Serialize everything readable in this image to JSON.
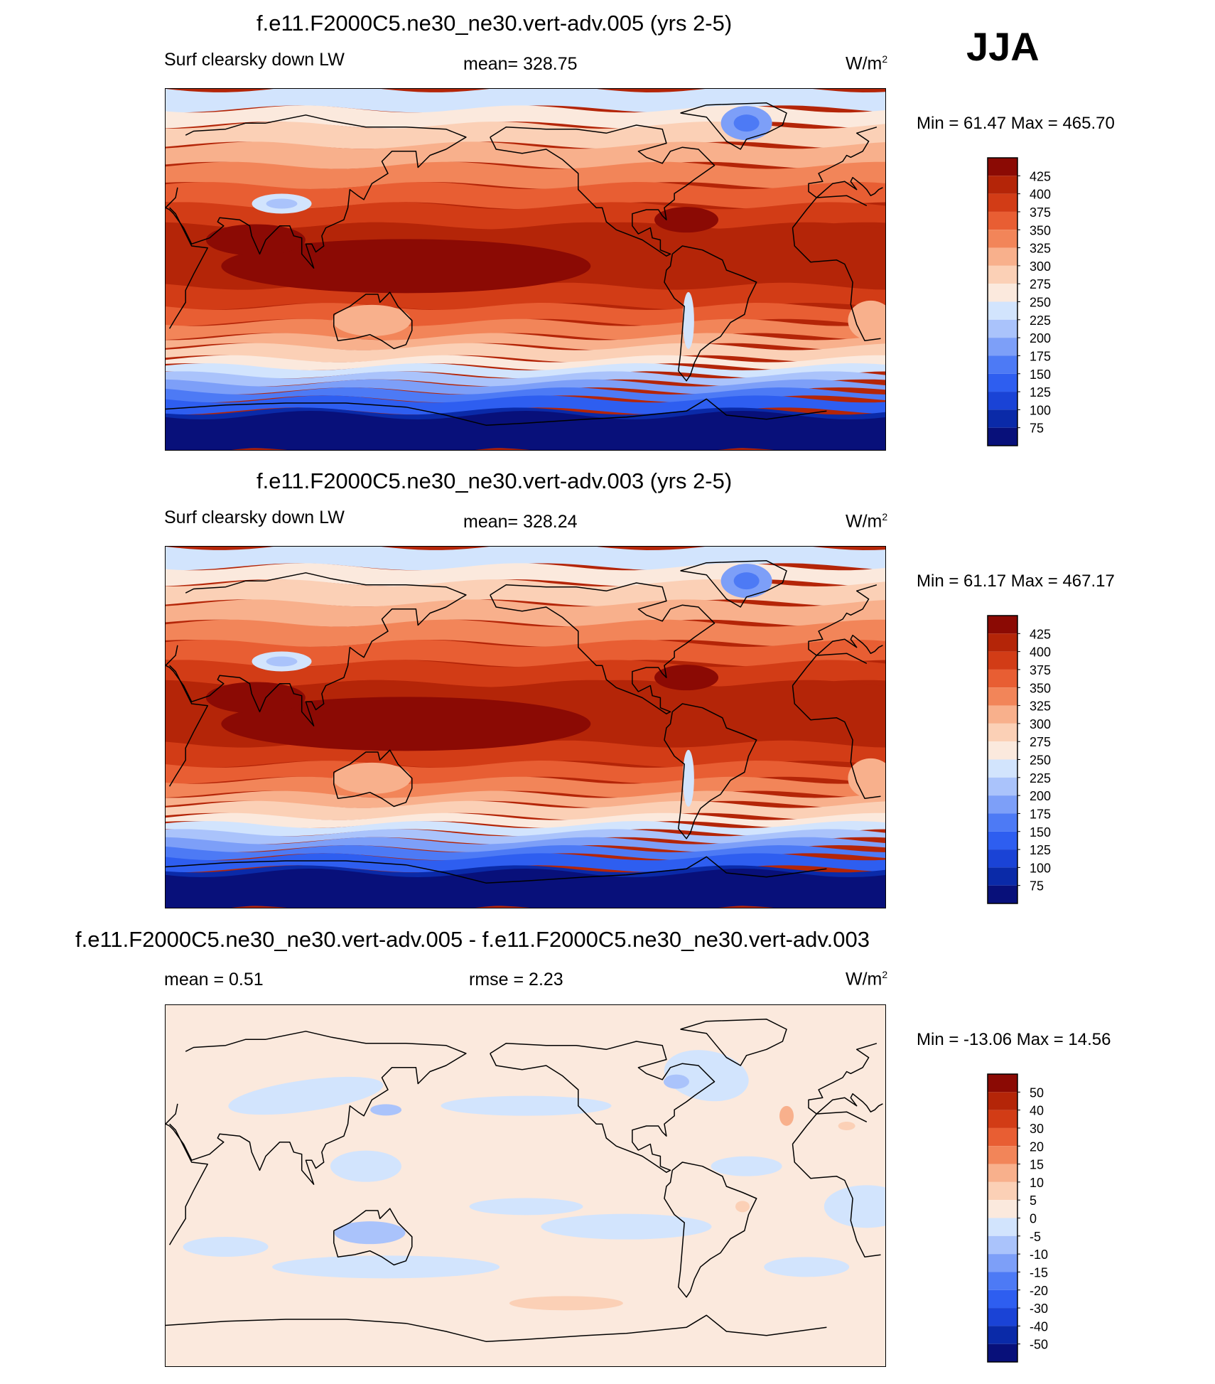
{
  "season": "JJA",
  "units": {
    "base": "W/m",
    "exp": "2"
  },
  "palette_abs": [
    "#08107a",
    "#0a2aa8",
    "#1a43d6",
    "#2e5ef0",
    "#4d7af5",
    "#7d9ff8",
    "#aac3fb",
    "#d2e4fd",
    "#fbe9dd",
    "#fbd0b6",
    "#f8b08c",
    "#f28559",
    "#e85e33",
    "#d23c16",
    "#b42508",
    "#8b0a04"
  ],
  "palette_diff": [
    "#08107a",
    "#0a2aa8",
    "#1a43d6",
    "#2e5ef0",
    "#4d7af5",
    "#7d9ff8",
    "#aac3fb",
    "#d2e4fd",
    "#fbe9dd",
    "#fbd0b6",
    "#f8b08c",
    "#f28559",
    "#e85e33",
    "#d23c16",
    "#b42508",
    "#8b0a04"
  ],
  "panels": [
    {
      "title": "f.e11.F2000C5.ne30_ne30.vert-adv.005 (yrs 2-5)",
      "variable": "Surf clearsky down LW",
      "mean_label": "mean= 328.75",
      "minmax": "Min =  61.47 Max = 465.70",
      "levels": [
        "425",
        "400",
        "375",
        "350",
        "325",
        "300",
        "275",
        "250",
        "225",
        "200",
        "175",
        "150",
        "125",
        "100",
        "75"
      ]
    },
    {
      "title": "f.e11.F2000C5.ne30_ne30.vert-adv.003 (yrs 2-5)",
      "variable": "Surf clearsky down LW",
      "mean_label": "mean= 328.24",
      "minmax": "Min =  61.17 Max = 467.17",
      "levels": [
        "425",
        "400",
        "375",
        "350",
        "325",
        "300",
        "275",
        "250",
        "225",
        "200",
        "175",
        "150",
        "125",
        "100",
        "75"
      ]
    },
    {
      "title": "f.e11.F2000C5.ne30_ne30.vert-adv.005 - f.e11.F2000C5.ne30_ne30.vert-adv.003",
      "mean_label": "mean =   0.51",
      "rmse_label": "rmse =   2.23",
      "minmax": "Min = -13.06 Max =  14.56",
      "levels": [
        "50",
        "40",
        "30",
        "20",
        "15",
        "10",
        "5",
        "0",
        "-5",
        "-10",
        "-15",
        "-20",
        "-30",
        "-40",
        "-50"
      ]
    }
  ]
}
